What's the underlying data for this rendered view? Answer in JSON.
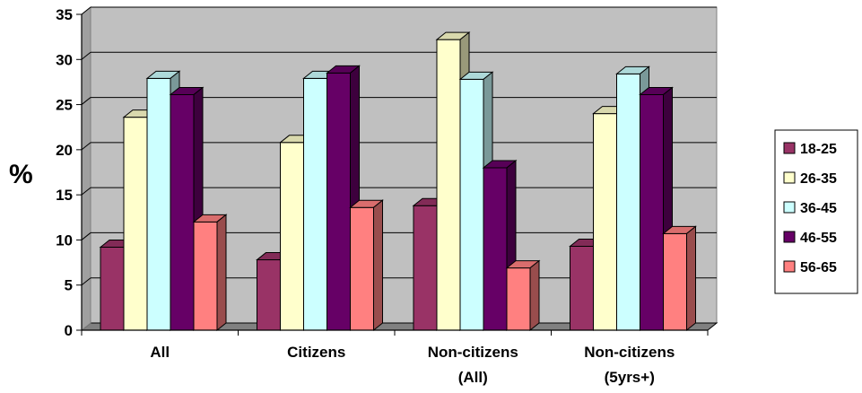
{
  "chart_data": {
    "type": "bar",
    "style": "3d-clustered-column",
    "categories": [
      [
        "All"
      ],
      [
        "Citizens"
      ],
      [
        "Non-citizens",
        "(All)"
      ],
      [
        "Non-citizens",
        "(5yrs+)"
      ]
    ],
    "series": [
      {
        "name": "18-25",
        "color": "#993366",
        "values": [
          9.2,
          7.8,
          13.8,
          9.3
        ]
      },
      {
        "name": "26-35",
        "color": "#FFFFCC",
        "values": [
          23.6,
          20.8,
          32.2,
          24.0
        ]
      },
      {
        "name": "36-45",
        "color": "#CCFFFF",
        "values": [
          27.9,
          27.9,
          27.8,
          28.4
        ]
      },
      {
        "name": "46-55",
        "color": "#660066",
        "values": [
          26.1,
          28.5,
          18.0,
          26.1
        ]
      },
      {
        "name": "56-65",
        "color": "#FF8080",
        "values": [
          12.0,
          13.6,
          6.9,
          10.7
        ]
      }
    ],
    "ylabel": "%",
    "yticks": [
      0,
      5,
      10,
      15,
      20,
      25,
      30,
      35
    ],
    "ylim": [
      0,
      35
    ],
    "grid": true,
    "plot_background": "#C0C0C0",
    "legend_position": "right"
  }
}
